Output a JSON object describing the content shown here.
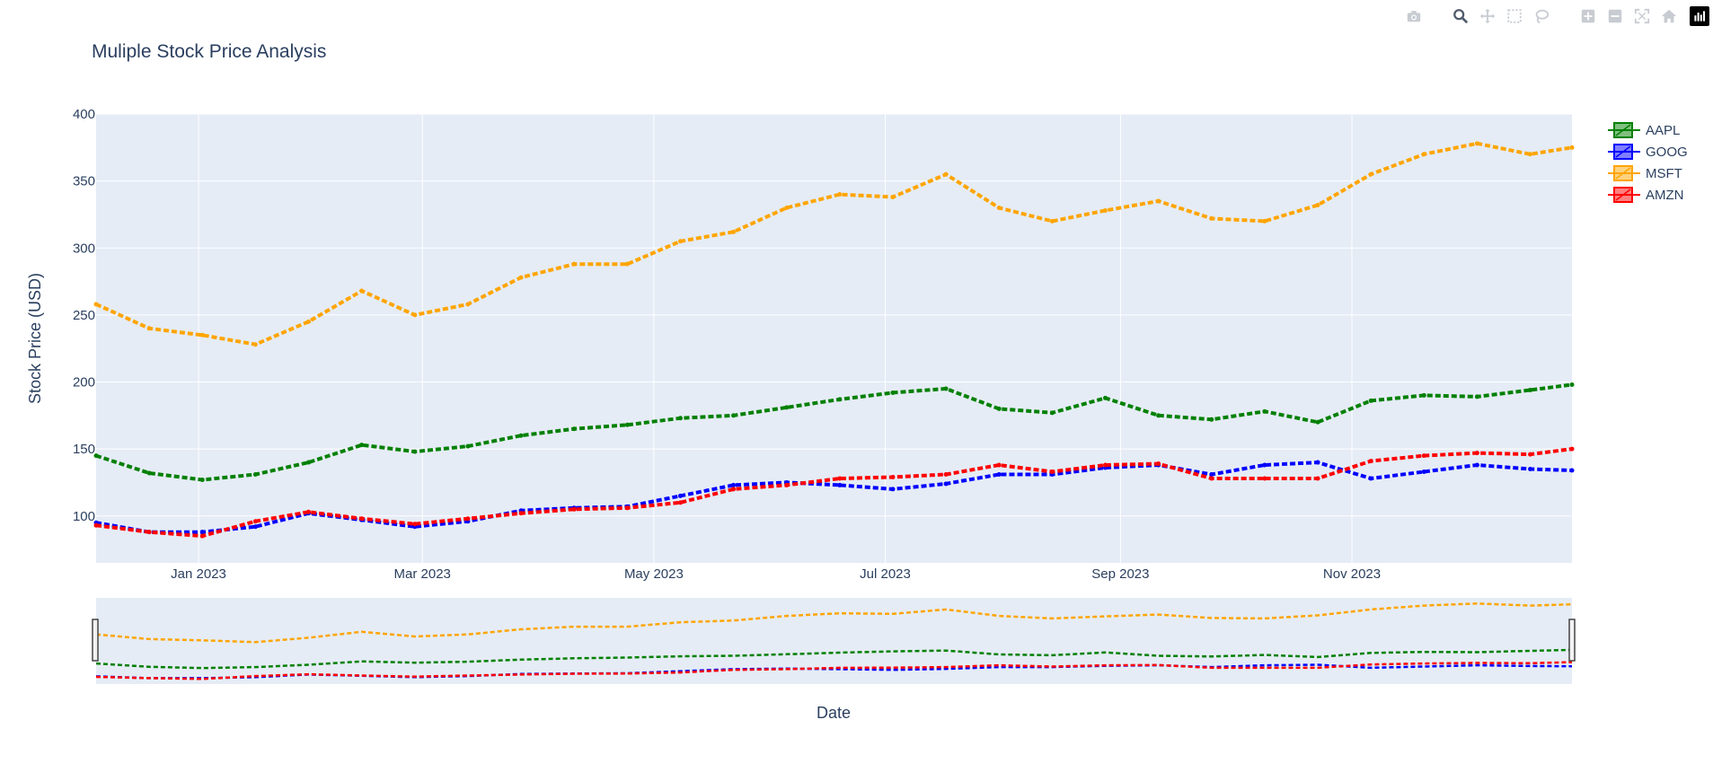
{
  "title": "Muliple Stock Price Analysis",
  "modebar": {
    "icons": [
      "camera-icon",
      "zoom-icon",
      "pan-icon",
      "box-select-icon",
      "lasso-icon",
      "zoom-in-icon",
      "zoom-out-icon",
      "autoscale-icon",
      "home-icon",
      "plotly-logo-icon"
    ]
  },
  "colors": {
    "AAPL": "#008000",
    "GOOG": "#0000ff",
    "MSFT": "#ffa500",
    "AMZN": "#ff0000",
    "plot_bg": "#e5ecf6",
    "grid": "#ffffff",
    "text": "#2a3f5f"
  },
  "chart_data": {
    "type": "line",
    "title": "Muliple Stock Price Analysis",
    "xlabel": "Date",
    "ylabel": "Stock Price (USD)",
    "x_range": [
      "2022-12-05",
      "2023-12-29"
    ],
    "ylim": [
      65,
      400
    ],
    "yticks": [
      100,
      150,
      200,
      250,
      300,
      350,
      400
    ],
    "xticks": [
      {
        "date": "2023-01-01",
        "label": "Jan 2023"
      },
      {
        "date": "2023-03-01",
        "label": "Mar 2023"
      },
      {
        "date": "2023-05-01",
        "label": "May 2023"
      },
      {
        "date": "2023-07-01",
        "label": "Jul 2023"
      },
      {
        "date": "2023-09-01",
        "label": "Sep 2023"
      },
      {
        "date": "2023-11-01",
        "label": "Nov 2023"
      }
    ],
    "grid": true,
    "legend_position": "top-right",
    "rangeslider": true,
    "x": [
      "2022-12-05",
      "2022-12-19",
      "2023-01-02",
      "2023-01-16",
      "2023-01-30",
      "2023-02-13",
      "2023-02-27",
      "2023-03-13",
      "2023-03-27",
      "2023-04-10",
      "2023-04-24",
      "2023-05-08",
      "2023-05-22",
      "2023-06-05",
      "2023-06-19",
      "2023-07-03",
      "2023-07-17",
      "2023-07-31",
      "2023-08-14",
      "2023-08-28",
      "2023-09-11",
      "2023-09-25",
      "2023-10-09",
      "2023-10-23",
      "2023-11-06",
      "2023-11-20",
      "2023-12-04",
      "2023-12-18",
      "2023-12-29"
    ],
    "series": [
      {
        "name": "AAPL",
        "values": [
          145,
          132,
          127,
          131,
          140,
          153,
          148,
          152,
          160,
          165,
          168,
          173,
          175,
          181,
          187,
          192,
          195,
          180,
          177,
          188,
          175,
          172,
          178,
          170,
          186,
          190,
          189,
          194,
          198
        ]
      },
      {
        "name": "GOOG",
        "values": [
          95,
          88,
          88,
          92,
          102,
          97,
          92,
          96,
          104,
          106,
          107,
          115,
          123,
          125,
          123,
          120,
          124,
          131,
          131,
          136,
          138,
          131,
          138,
          140,
          128,
          133,
          138,
          135,
          134
        ]
      },
      {
        "name": "MSFT",
        "values": [
          258,
          240,
          235,
          228,
          245,
          268,
          250,
          258,
          278,
          288,
          288,
          305,
          312,
          330,
          340,
          338,
          355,
          330,
          320,
          328,
          335,
          322,
          320,
          332,
          355,
          370,
          378,
          370,
          375
        ]
      },
      {
        "name": "AMZN",
        "values": [
          93,
          88,
          85,
          96,
          103,
          98,
          94,
          98,
          102,
          105,
          106,
          110,
          120,
          123,
          128,
          129,
          131,
          138,
          133,
          138,
          139,
          128,
          128,
          128,
          141,
          145,
          147,
          146,
          150
        ]
      }
    ]
  }
}
